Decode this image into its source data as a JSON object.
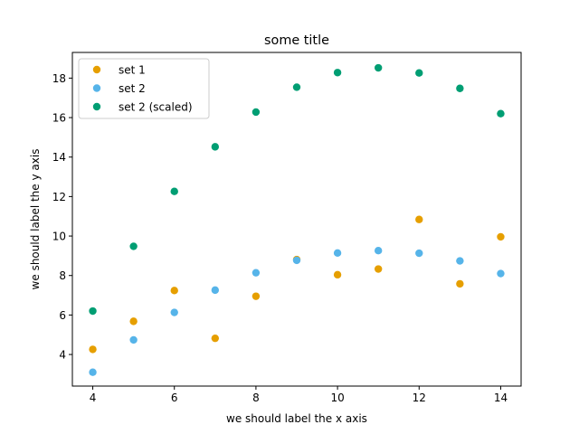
{
  "chart_data": {
    "type": "scatter",
    "title": "some title",
    "xlabel": "we should label the x axis",
    "ylabel": "we should label the y axis",
    "xlim": [
      3.5,
      14.5
    ],
    "ylim": [
      2.4,
      19.3
    ],
    "xticks": [
      4,
      6,
      8,
      10,
      12,
      14
    ],
    "yticks": [
      4,
      6,
      8,
      10,
      12,
      14,
      16,
      18
    ],
    "grid": false,
    "legend_position": "top-left",
    "series": [
      {
        "name": "set 1",
        "color": "#E69F00",
        "points": [
          [
            4,
            4.26
          ],
          [
            5,
            5.68
          ],
          [
            6,
            7.24
          ],
          [
            7,
            4.82
          ],
          [
            8,
            6.95
          ],
          [
            9,
            8.81
          ],
          [
            10,
            8.04
          ],
          [
            11,
            8.33
          ],
          [
            12,
            10.84
          ],
          [
            13,
            7.58
          ],
          [
            14,
            9.96
          ]
        ]
      },
      {
        "name": "set 2",
        "color": "#56B4E9",
        "points": [
          [
            4,
            3.1
          ],
          [
            5,
            4.74
          ],
          [
            6,
            6.13
          ],
          [
            7,
            7.26
          ],
          [
            8,
            8.14
          ],
          [
            9,
            8.77
          ],
          [
            10,
            9.14
          ],
          [
            11,
            9.26
          ],
          [
            12,
            9.13
          ],
          [
            13,
            8.74
          ],
          [
            14,
            8.1
          ]
        ]
      },
      {
        "name": "set 2 (scaled)",
        "color": "#009E73",
        "points": [
          [
            4,
            6.2
          ],
          [
            5,
            9.48
          ],
          [
            6,
            12.26
          ],
          [
            7,
            14.52
          ],
          [
            8,
            16.28
          ],
          [
            9,
            17.54
          ],
          [
            10,
            18.28
          ],
          [
            11,
            18.52
          ],
          [
            12,
            18.26
          ],
          [
            13,
            17.48
          ],
          [
            14,
            16.2
          ]
        ]
      }
    ]
  }
}
